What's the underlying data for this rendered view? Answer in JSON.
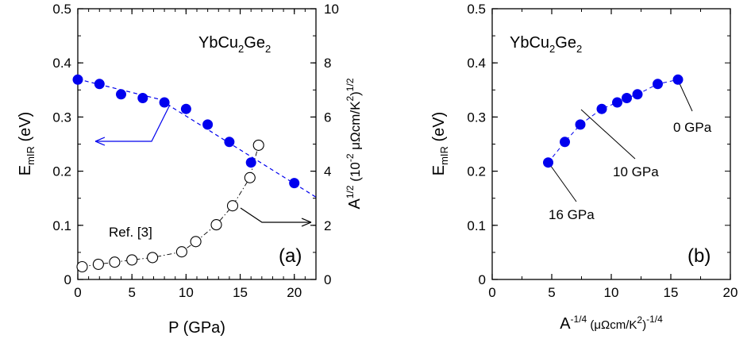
{
  "chart_data": [
    {
      "panel": "(a)",
      "type": "scatter",
      "compound": "YbCu2Ge2",
      "xlabel": "P (GPa)",
      "ylabel_left": "EmIR (eV)",
      "ylabel_right": "A1/2 (10-2 μΩcm/K2)1/2",
      "xlim": [
        0,
        22
      ],
      "ylim_left": [
        0,
        0.5
      ],
      "ylim_right": [
        0,
        10
      ],
      "xticks": [
        "0",
        "5",
        "10",
        "15",
        "20"
      ],
      "yticks_left": [
        "0",
        "0.1",
        "0.2",
        "0.3",
        "0.4",
        "0.5"
      ],
      "yticks_right": [
        "0",
        "2",
        "4",
        "6",
        "8",
        "10"
      ],
      "series": [
        {
          "axis": "left",
          "marker": "filled-circle",
          "color": "#0000ee",
          "x": [
            0,
            2,
            4,
            6,
            8,
            10,
            12,
            14,
            16,
            20
          ],
          "y": [
            0.369,
            0.361,
            0.342,
            0.335,
            0.327,
            0.315,
            0.286,
            0.254,
            0.216,
            0.178
          ]
        },
        {
          "axis": "right",
          "marker": "open-circle",
          "color": "#000000",
          "label": "Ref. [3]",
          "x": [
            0.4,
            1.9,
            3.4,
            5.0,
            6.9,
            9.6,
            10.9,
            12.8,
            14.3,
            15.9,
            16.7
          ],
          "y": [
            0.47,
            0.56,
            0.64,
            0.72,
            0.81,
            1.02,
            1.4,
            2.02,
            2.72,
            3.76,
            4.96
          ]
        }
      ],
      "fit_line": {
        "style": "dashed",
        "color": "#0000ee",
        "x": [
          0,
          7.5,
          22
        ],
        "y": [
          0.37,
          0.333,
          0.152
        ]
      },
      "panel_label": "(a)"
    },
    {
      "panel": "(b)",
      "type": "scatter",
      "compound": "YbCu2Ge2",
      "xlabel": "A-1/4 (μΩcm/K2)-1/4",
      "ylabel": "EmIR (eV)",
      "xlim": [
        0,
        20
      ],
      "ylim": [
        0,
        0.5
      ],
      "xticks": [
        "0",
        "5",
        "10",
        "15",
        "20"
      ],
      "yticks": [
        "0",
        "0.1",
        "0.2",
        "0.3",
        "0.4",
        "0.5"
      ],
      "series": [
        {
          "marker": "filled-circle",
          "color": "#0000ee",
          "x": [
            4.7,
            6.1,
            7.4,
            9.2,
            10.5,
            11.3,
            12.2,
            13.9,
            15.6
          ],
          "y": [
            0.216,
            0.254,
            0.286,
            0.315,
            0.327,
            0.335,
            0.342,
            0.361,
            0.369
          ]
        }
      ],
      "annotations": [
        {
          "text": "0 GPa",
          "x": 15.6,
          "y": 0.369
        },
        {
          "text": "10 GPa",
          "x": 9.2,
          "y": 0.315
        },
        {
          "text": "16 GPa",
          "x": 4.7,
          "y": 0.216
        }
      ],
      "panel_label": "(b)"
    }
  ]
}
